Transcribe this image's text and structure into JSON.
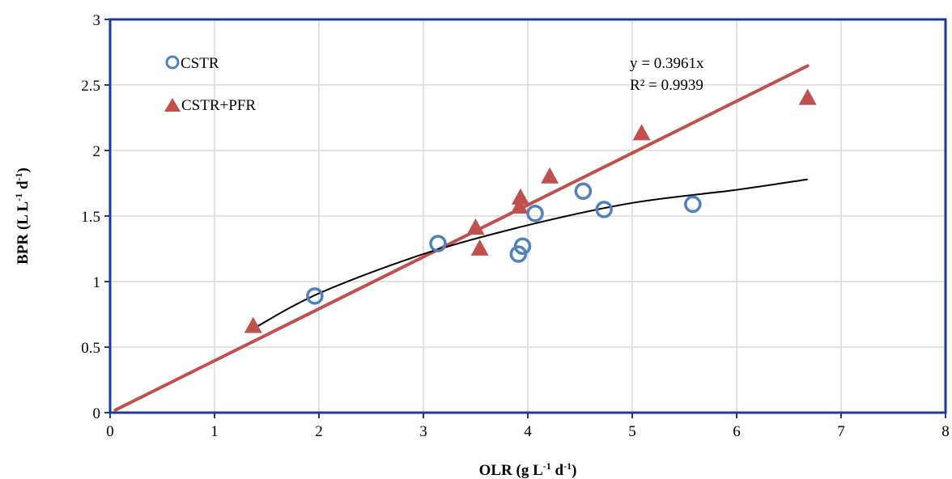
{
  "chart_data": {
    "type": "scatter",
    "xlabel": "OLR (g L⁻¹ d⁻¹)",
    "ylabel": "BPR (L L⁻¹ d⁻¹)",
    "xlim": [
      0,
      8
    ],
    "ylim": [
      0,
      3
    ],
    "x_ticks": [
      0,
      1,
      2,
      3,
      4,
      5,
      6,
      7,
      8
    ],
    "y_ticks": [
      0,
      0.5,
      1,
      1.5,
      2,
      2.5,
      3
    ],
    "x_tick_labels": [
      "0",
      "1",
      "2",
      "3",
      "4",
      "5",
      "6",
      "7",
      "8"
    ],
    "y_tick_labels": [
      "0",
      "0.5",
      "1",
      "1.5",
      "2",
      "2.5",
      "3"
    ],
    "grid": true,
    "legend_position": "top-left",
    "series": [
      {
        "name": "CSTR",
        "marker": "open-circle",
        "color": "#4F81BD",
        "x": [
          1.96,
          3.14,
          3.91,
          3.95,
          4.07,
          4.53,
          4.73,
          5.58
        ],
        "y": [
          0.89,
          1.29,
          1.21,
          1.27,
          1.52,
          1.69,
          1.55,
          1.59
        ]
      },
      {
        "name": "CSTR+PFR",
        "marker": "filled-triangle",
        "color": "#C0504D",
        "x": [
          1.37,
          3.5,
          3.54,
          3.92,
          3.93,
          4.21,
          5.09,
          6.68
        ],
        "y": [
          0.67,
          1.42,
          1.26,
          1.58,
          1.65,
          1.81,
          2.14,
          2.41
        ]
      }
    ],
    "trendlines": [
      {
        "series": "CSTR+PFR",
        "kind": "linear-through-origin",
        "slope": 0.3961,
        "x_range": [
          0.05,
          6.68
        ],
        "color": "#C0504D"
      },
      {
        "series": "CSTR",
        "kind": "logarithmic",
        "x_range": [
          1.37,
          6.68
        ],
        "points": [
          [
            1.37,
            0.64
          ],
          [
            2.0,
            0.91
          ],
          [
            3.0,
            1.21
          ],
          [
            4.0,
            1.43
          ],
          [
            5.0,
            1.6
          ],
          [
            6.0,
            1.7
          ],
          [
            6.68,
            1.78
          ]
        ],
        "color": "#000000"
      }
    ],
    "annotations": {
      "equation": "y = 0.3961x",
      "r_squared": "R² = 0.9939"
    }
  }
}
